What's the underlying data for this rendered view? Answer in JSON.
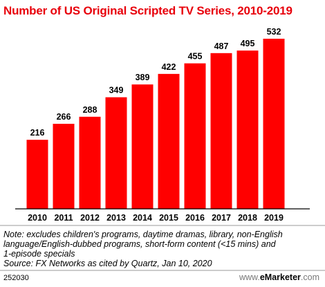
{
  "chart_data": {
    "type": "bar",
    "title": "Number of US Original Scripted TV Series, 2010-2019",
    "categories": [
      "2010",
      "2011",
      "2012",
      "2013",
      "2014",
      "2015",
      "2016",
      "2017",
      "2018",
      "2019"
    ],
    "values": [
      216,
      266,
      288,
      349,
      389,
      422,
      455,
      487,
      495,
      532
    ],
    "xlabel": "",
    "ylabel": "",
    "ylim": [
      0,
      532
    ],
    "grid": false,
    "bar_color": "#ff0000"
  },
  "note_lines": [
    "Note: excludes children's programs, daytime dramas, library, non-English",
    "language/English-dubbed programs, short-form content (<15 mins) and",
    "1-episode specials",
    "Source: FX Networks as cited by Quartz, Jan 10, 2020"
  ],
  "footer": {
    "chart_id": "252030",
    "brand_prefix": "www.",
    "brand_name": "eMarketer",
    "brand_suffix": ".com"
  },
  "colors": {
    "title": "#e8000b",
    "bars": "#ff0000",
    "axis": "#000000"
  }
}
